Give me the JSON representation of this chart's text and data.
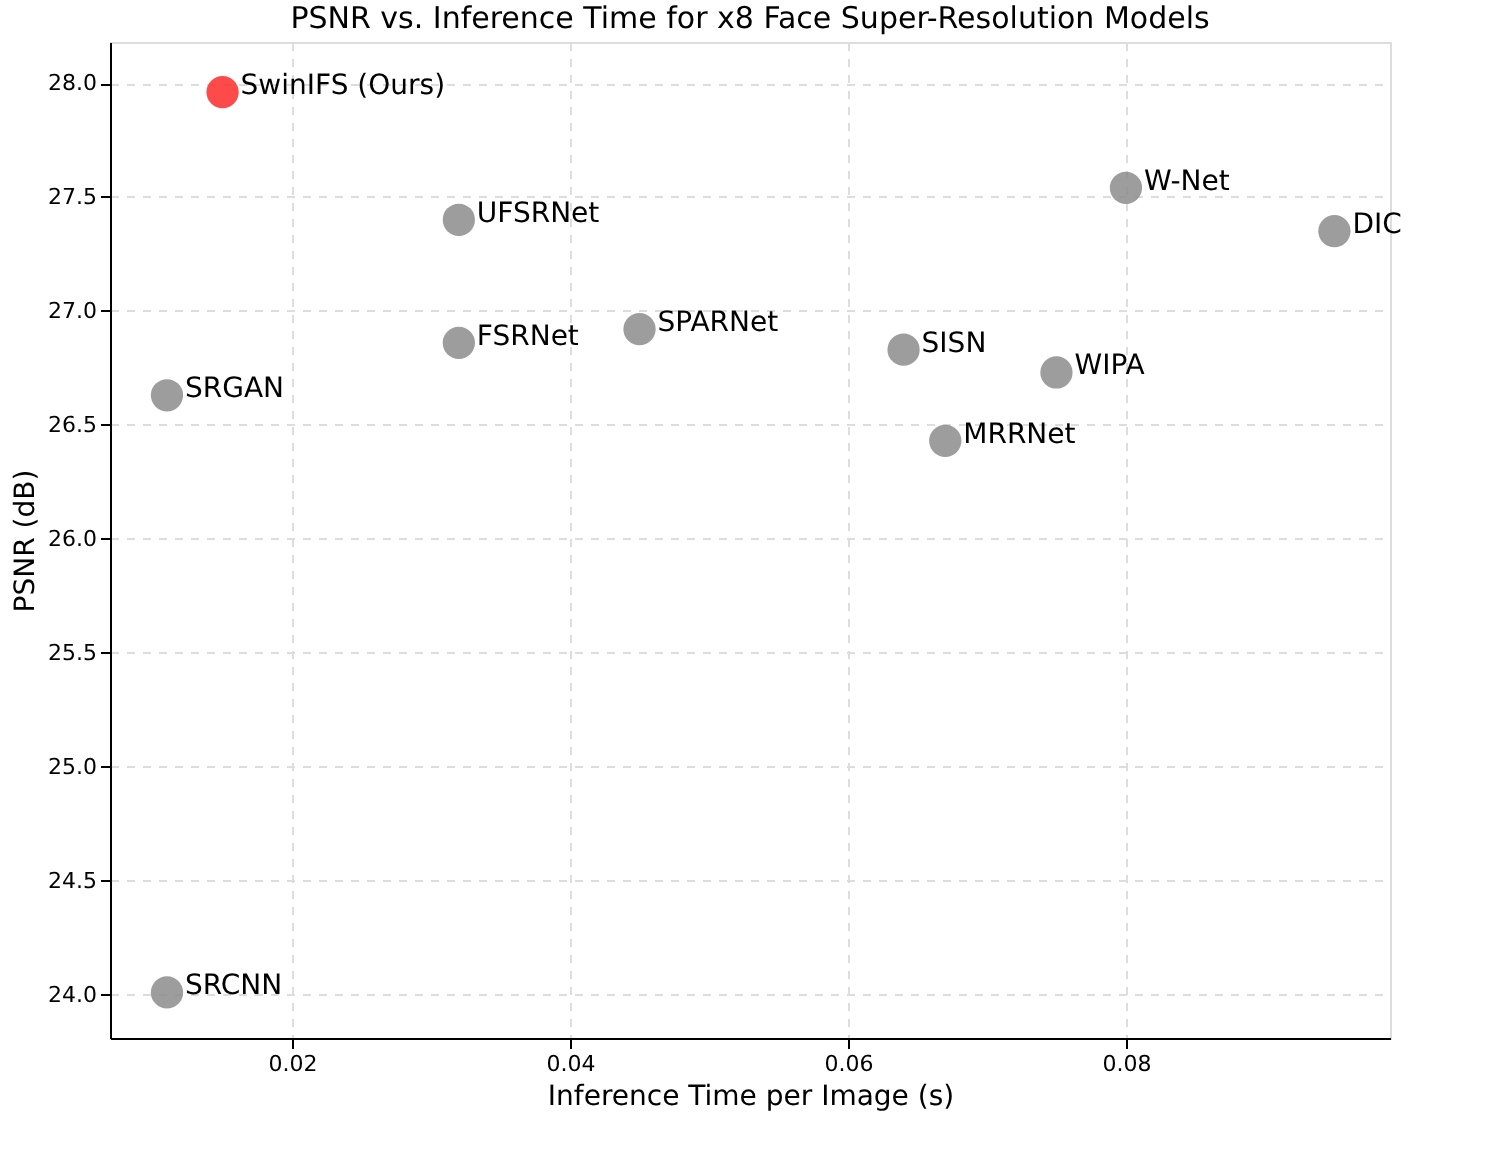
{
  "chart_data": {
    "type": "scatter",
    "title": "PSNR vs. Inference Time for x8 Face Super-Resolution Models",
    "xlabel": "Inference Time per Image (s)",
    "ylabel": "PSNR (dB)",
    "series": [
      {
        "name": "SwinIFS (Ours)",
        "color": "#ff2a2a",
        "x": [
          0.015
        ],
        "values": [
          27.96
        ]
      },
      {
        "name": "UFSRNet",
        "color": "#8c8c8c",
        "x": [
          0.032
        ],
        "values": [
          27.4
        ]
      },
      {
        "name": "FSRNet",
        "color": "#8c8c8c",
        "x": [
          0.032
        ],
        "values": [
          26.86
        ]
      },
      {
        "name": "SPARNet",
        "color": "#8c8c8c",
        "x": [
          0.045
        ],
        "values": [
          26.92
        ]
      },
      {
        "name": "SRGAN",
        "color": "#8c8c8c",
        "x": [
          0.011
        ],
        "values": [
          26.63
        ]
      },
      {
        "name": "SRCNN",
        "color": "#8c8c8c",
        "x": [
          0.011
        ],
        "values": [
          24.01
        ]
      },
      {
        "name": "SISN",
        "color": "#8c8c8c",
        "x": [
          0.064
        ],
        "values": [
          26.83
        ]
      },
      {
        "name": "MRRNet",
        "color": "#8c8c8c",
        "x": [
          0.067
        ],
        "values": [
          26.43
        ]
      },
      {
        "name": "WIPA",
        "color": "#8c8c8c",
        "x": [
          0.075
        ],
        "values": [
          26.73
        ]
      },
      {
        "name": "W-Net",
        "color": "#8c8c8c",
        "x": [
          0.08
        ],
        "values": [
          27.54
        ]
      },
      {
        "name": "DIC",
        "color": "#8c8c8c",
        "x": [
          0.095
        ],
        "values": [
          27.35
        ]
      }
    ],
    "xlim": [
      0.0069,
      0.099
    ],
    "xticks": [
      {
        "value": 0.02,
        "label": "0.02"
      },
      {
        "value": 0.04,
        "label": "0.04"
      },
      {
        "value": 0.06,
        "label": "0.06"
      },
      {
        "value": 0.08,
        "label": "0.08"
      }
    ],
    "ylim": [
      23.81,
      28.18
    ],
    "yticks": [
      {
        "value": 24.0,
        "label": "24.0"
      },
      {
        "value": 24.5,
        "label": "24.5"
      },
      {
        "value": 25.0,
        "label": "25.0"
      },
      {
        "value": 25.5,
        "label": "25.5"
      },
      {
        "value": 26.0,
        "label": "26.0"
      },
      {
        "value": 26.5,
        "label": "26.5"
      },
      {
        "value": 27.0,
        "label": "27.0"
      },
      {
        "value": 27.5,
        "label": "27.5"
      },
      {
        "value": 28.0,
        "label": "28.0"
      }
    ],
    "grid": true,
    "marker": "circle",
    "legend": false
  }
}
